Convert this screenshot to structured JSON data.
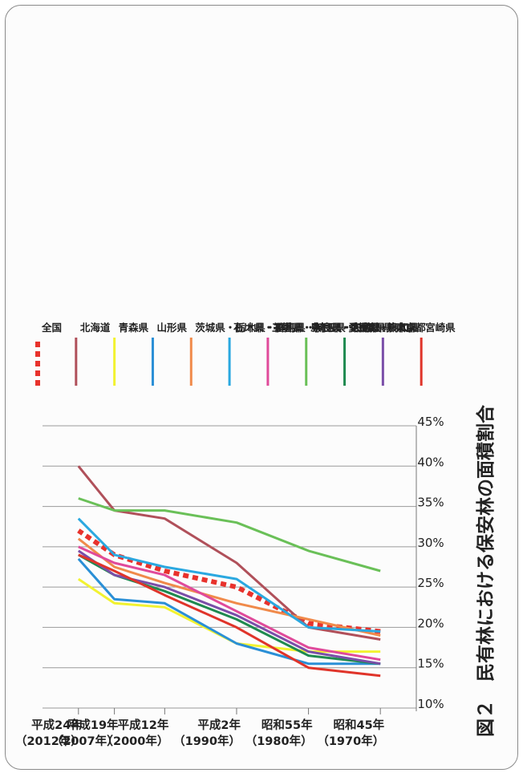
{
  "chart_data": {
    "type": "line",
    "title": "図２　民有林における保安林の面積割合",
    "ylim": [
      10,
      45
    ],
    "y_ticks": [
      "10%",
      "15%",
      "20%",
      "25%",
      "30%",
      "35%",
      "40%",
      "45%"
    ],
    "categories": [
      [
        "昭和45年",
        "（1970年）"
      ],
      [
        "昭和55年",
        "（1980年）"
      ],
      [
        "平成2年",
        "（1990年）"
      ],
      [
        "平成12年",
        "（2000年）"
      ],
      [
        "平成19年",
        "（2007年）"
      ],
      [
        "平成24年",
        "（2012年）"
      ]
    ],
    "x_positions": [
      1970,
      1980,
      1990,
      2000,
      2007,
      2012
    ],
    "grid": true,
    "series": [
      {
        "name": "全国",
        "color": "#e8322c",
        "dashed": true,
        "x": [
          1970,
          1980,
          1990,
          2000,
          2007,
          2012
        ],
        "values": [
          19.5,
          20.5,
          25.0,
          27.0,
          29.0,
          32.0
        ]
      },
      {
        "name": "北海道",
        "color": "#b0505a",
        "x": [
          1970,
          1980,
          1990,
          2000,
          2007,
          2012
        ],
        "values": [
          18.5,
          20.0,
          28.0,
          33.5,
          34.5,
          40.0
        ]
      },
      {
        "name": "青森県",
        "color": "#f2f230",
        "x": [
          1970,
          1980,
          1990,
          2000,
          2007,
          2012
        ],
        "values": [
          17.0,
          17.0,
          18.0,
          22.5,
          23.0,
          26.0
        ]
      },
      {
        "name": "山形県",
        "color": "#2a8fd6",
        "x": [
          1970,
          1980,
          1990,
          2000,
          2007,
          2012
        ],
        "values": [
          15.5,
          15.5,
          18.0,
          23.0,
          23.5,
          28.5
        ]
      },
      {
        "name": "茨城県・栃木県・群馬県・埼玉県・千葉県・東京都",
        "color": "#f08a4a",
        "x": [
          1970,
          1980,
          1990,
          2000,
          2007,
          2012
        ],
        "values": [
          19.0,
          21.0,
          23.0,
          25.5,
          27.5,
          31.0
        ]
      },
      {
        "name": "石川県・福井県",
        "color": "#2aa8e0",
        "x": [
          1970,
          1980,
          1990,
          2000,
          2007,
          2012
        ],
        "values": [
          19.5,
          20.0,
          26.0,
          27.5,
          29.0,
          33.5
        ]
      },
      {
        "name": "三重県・奈良県・和歌山県",
        "color": "#e04a9a",
        "x": [
          1970,
          1980,
          1990,
          2000,
          2007,
          2012
        ],
        "values": [
          16.0,
          17.5,
          22.0,
          26.5,
          28.0,
          30.0
        ]
      },
      {
        "name": "島根県・広島県",
        "color": "#6ac058",
        "x": [
          1970,
          1980,
          1990,
          2000,
          2007,
          2012
        ],
        "values": [
          27.0,
          29.5,
          33.0,
          34.5,
          34.5,
          36.0
        ]
      },
      {
        "name": "愛媛県・高知県",
        "color": "#1f8a50",
        "x": [
          1970,
          1980,
          1990,
          2000,
          2007,
          2012
        ],
        "values": [
          15.5,
          16.5,
          21.0,
          24.5,
          26.5,
          29.0
        ]
      },
      {
        "name": "熊本県",
        "color": "#7a4ea8",
        "x": [
          1970,
          1980,
          1990,
          2000,
          2007,
          2012
        ],
        "values": [
          15.5,
          17.0,
          21.5,
          25.0,
          26.5,
          29.5
        ]
      },
      {
        "name": "宮崎県",
        "color": "#e0342a",
        "x": [
          1970,
          1980,
          1990,
          2000,
          2007,
          2012
        ],
        "values": [
          14.0,
          15.0,
          20.0,
          24.0,
          27.0,
          29.0
        ]
      }
    ]
  }
}
